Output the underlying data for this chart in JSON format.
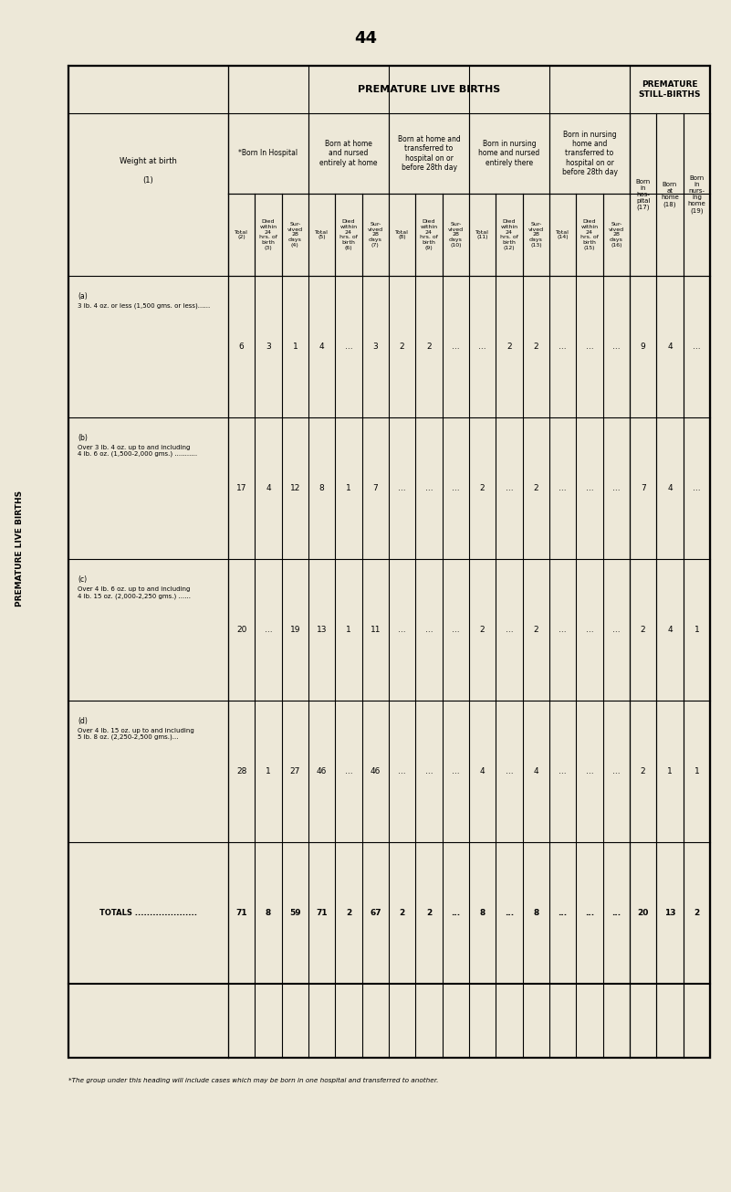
{
  "page_number": "44",
  "bg_color": "#ede8d8",
  "footnote": "*The group under this heading will include cases which may be born in one hospital and transferred to another.",
  "col_header_groups": [
    {
      "label": "*Born In Hospital",
      "sub": [
        {
          "num": 2,
          "text": "Total"
        },
        {
          "num": 3,
          "text": "Died\nwithin\n24\nhrs. of\nbirth"
        },
        {
          "num": 4,
          "text": "Sur-\nvived\n28\ndays"
        }
      ]
    },
    {
      "label": "Born at home\nand nursed\nentirely at home",
      "sub": [
        {
          "num": 5,
          "text": "Total"
        },
        {
          "num": 6,
          "text": "Died\nwithin\n24\nhrs. of\nbirth"
        },
        {
          "num": 7,
          "text": "Sur-\nvived\n28\ndays"
        }
      ]
    },
    {
      "label": "Born at home and\ntransferred to\nhospital on or\nbefore 28th day",
      "sub": [
        {
          "num": 8,
          "text": "Total"
        },
        {
          "num": 9,
          "text": "Died\nwithin\n24\nhrs. of\nbirth"
        },
        {
          "num": 10,
          "text": "Sur-\nvived\n28\ndays"
        }
      ]
    },
    {
      "label": "Born in nursing\nhome and nursed\nentirely there",
      "sub": [
        {
          "num": 11,
          "text": "Total"
        },
        {
          "num": 12,
          "text": "Died\nwithin\n24\nhrs. of\nbirth"
        },
        {
          "num": 13,
          "text": "Sur-\nvived\n28\ndays"
        }
      ]
    },
    {
      "label": "Born in nursing\nhome and\ntransferred to\nhospital on or\nbefore 28th day",
      "sub": [
        {
          "num": 14,
          "text": "Total"
        },
        {
          "num": 15,
          "text": "Died\nwithin\n24\nhrs. of\nbirth"
        },
        {
          "num": 16,
          "text": "Sur-\nvived\n28\ndays"
        }
      ]
    }
  ],
  "stillbirth_cols": [
    {
      "num": 17,
      "text": "Born\nin\nhos-\npital"
    },
    {
      "num": 18,
      "text": "Born\nat\nhome"
    },
    {
      "num": 19,
      "text": "Born\nin\nnurs-\ning\nhome"
    }
  ],
  "row_labels": [
    {
      "a": "(a)",
      "b": "3 lb. 4 oz. or less (1,500 gms. or less)......"
    },
    {
      "a": "(b)",
      "b": "Over 3 lb. 4 oz. up to and including\n4 lb. 6 oz. (1,500-2,000 gms.) ..........."
    },
    {
      "a": "(c)",
      "b": "Over 4 lb. 6 oz. up to and including\n4 lb. 15 oz. (2,000-2,250 gms.) ......"
    },
    {
      "a": "(d)",
      "b": "Over 4 lb. 15 oz. up to and including\n5 lb. 8 oz. (2,250-2,500 gms.)..."
    },
    {
      "a": "TOTALS",
      "b": "....................."
    }
  ],
  "table_data": [
    [
      "6",
      "3",
      "1",
      "4",
      "...",
      "3",
      "2",
      "2",
      "...",
      "...",
      "2",
      "2",
      "...",
      "...",
      "...",
      "9",
      "4",
      "..."
    ],
    [
      "17",
      "4",
      "12",
      "8",
      "1",
      "7",
      "...",
      "...",
      "...",
      "2",
      "...",
      "2",
      "...",
      "...",
      "...",
      "7",
      "4",
      "..."
    ],
    [
      "20",
      "...",
      "19",
      "13",
      "1",
      "11",
      "...",
      "...",
      "...",
      "2",
      "...",
      "2",
      "...",
      "...",
      "...",
      "2",
      "4",
      "1"
    ],
    [
      "28",
      "1",
      "27",
      "46",
      "...",
      "46",
      "...",
      "...",
      "...",
      "4",
      "...",
      "4",
      "...",
      "...",
      "...",
      "2",
      "1",
      "1"
    ],
    [
      "71",
      "8",
      "59",
      "71",
      "2",
      "67",
      "2",
      "2",
      "...",
      "8",
      "...",
      "8",
      "...",
      "...",
      "...",
      "20",
      "13",
      "2"
    ]
  ]
}
